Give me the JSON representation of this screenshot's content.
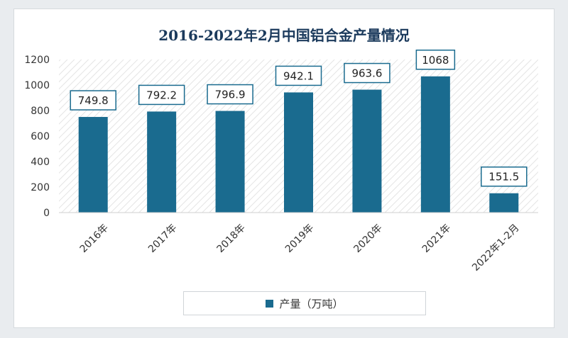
{
  "chart_data": {
    "type": "bar",
    "title": "2016-2022年2月中国铝合金产量情况",
    "categories": [
      "2016年",
      "2017年",
      "2018年",
      "2019年",
      "2020年",
      "2021年",
      "2022年1-2月"
    ],
    "series": [
      {
        "name": "产量（万吨）",
        "values": [
          749.8,
          792.2,
          796.9,
          942.1,
          963.6,
          1068,
          151.5
        ]
      }
    ],
    "data_labels": [
      "749.8",
      "792.2",
      "796.9",
      "942.1",
      "963.6",
      "1068",
      "151.5"
    ],
    "y_ticks": [
      "0",
      "200",
      "400",
      "600",
      "800",
      "1000",
      "1200"
    ],
    "ylim": [
      0,
      1200
    ],
    "grid": false,
    "legend_position": "bottom",
    "colors": {
      "bar": "#1a6b8f",
      "label_border": "#1a6b8f",
      "hatch": "#e4e4e4"
    }
  }
}
